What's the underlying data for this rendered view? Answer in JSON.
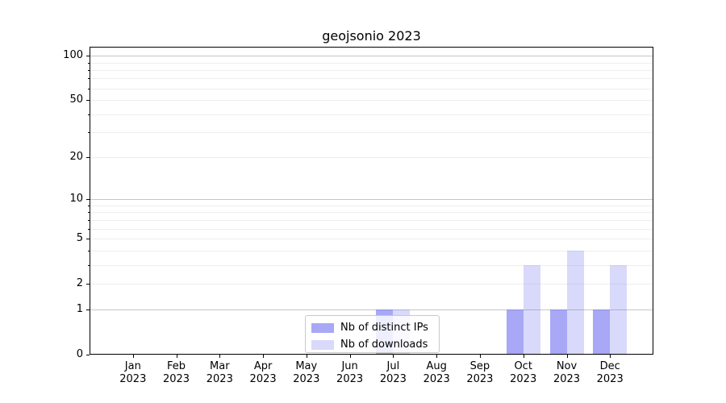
{
  "chart_data": {
    "type": "bar",
    "title": "geojsonio 2023",
    "categories": [
      {
        "month": "Jan",
        "year": "2023"
      },
      {
        "month": "Feb",
        "year": "2023"
      },
      {
        "month": "Mar",
        "year": "2023"
      },
      {
        "month": "Apr",
        "year": "2023"
      },
      {
        "month": "May",
        "year": "2023"
      },
      {
        "month": "Jun",
        "year": "2023"
      },
      {
        "month": "Jul",
        "year": "2023"
      },
      {
        "month": "Aug",
        "year": "2023"
      },
      {
        "month": "Sep",
        "year": "2023"
      },
      {
        "month": "Oct",
        "year": "2023"
      },
      {
        "month": "Nov",
        "year": "2023"
      },
      {
        "month": "Dec",
        "year": "2023"
      }
    ],
    "series": [
      {
        "name": "Nb of distinct IPs",
        "color": "#6969f0",
        "alpha": 0.58,
        "values": [
          0,
          0,
          0,
          0,
          0,
          0,
          1,
          0,
          0,
          1,
          1,
          1
        ]
      },
      {
        "name": "Nb of downloads",
        "color": "#6969f0",
        "alpha": 0.25,
        "values": [
          0,
          0,
          0,
          0,
          0,
          0,
          1,
          0,
          0,
          3,
          4,
          3
        ]
      }
    ],
    "xlabel": "",
    "ylabel": "",
    "yscale": "log1p",
    "ylim": [
      0,
      100
    ],
    "yticks_labeled": [
      0,
      1,
      2,
      5,
      10,
      20,
      50,
      100
    ],
    "ygrid_major": [
      1,
      10,
      100
    ],
    "ygrid_minor": [
      2,
      3,
      4,
      5,
      6,
      7,
      8,
      9,
      20,
      30,
      40,
      50,
      60,
      70,
      80,
      90
    ],
    "grid": true,
    "legend_position": "lower center inside plot"
  },
  "colors": {
    "background": "#ffffff",
    "axis": "#000000",
    "major_grid": "#c6c6c6",
    "minor_grid": "#eeeeee",
    "legend_border": "#c9c9c9"
  }
}
